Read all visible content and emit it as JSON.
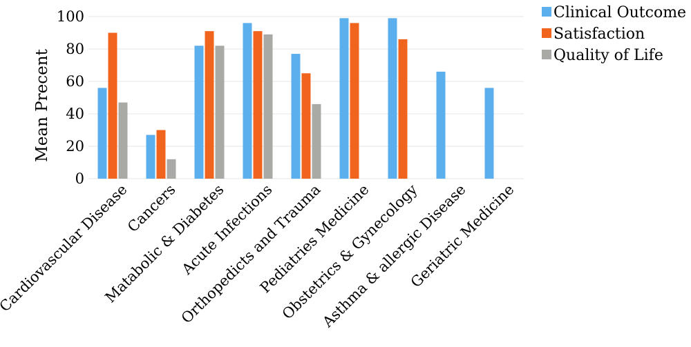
{
  "chart_data": {
    "type": "bar",
    "title": "",
    "xlabel": "",
    "ylabel": "Mean Precent",
    "ylim": [
      0,
      100
    ],
    "yticks": [
      0,
      20,
      40,
      60,
      80,
      100
    ],
    "grid": true,
    "legend_position": "top-right",
    "categories": [
      "Cardiovascular Disease",
      "Cancers",
      "Matabolic & Diabetes",
      "Acute Infections",
      "Orthopedicts and Trauma",
      "Pediatries Medicine",
      "Obstetrics & Gynecology",
      "Asthma & allergic Disease",
      "Geriatric Medicine"
    ],
    "series": [
      {
        "name": "Clinical Outcome",
        "color": "#5aafec",
        "values": [
          56,
          27,
          82,
          96,
          77,
          99,
          99,
          66,
          56
        ]
      },
      {
        "name": "Satisfaction",
        "color": "#f0641e",
        "values": [
          90,
          30,
          91,
          91,
          65,
          96,
          86,
          null,
          null
        ]
      },
      {
        "name": "Quality of Life",
        "color": "#a9aaa5",
        "values": [
          47,
          12,
          82,
          89,
          46,
          null,
          null,
          null,
          null
        ]
      }
    ]
  }
}
